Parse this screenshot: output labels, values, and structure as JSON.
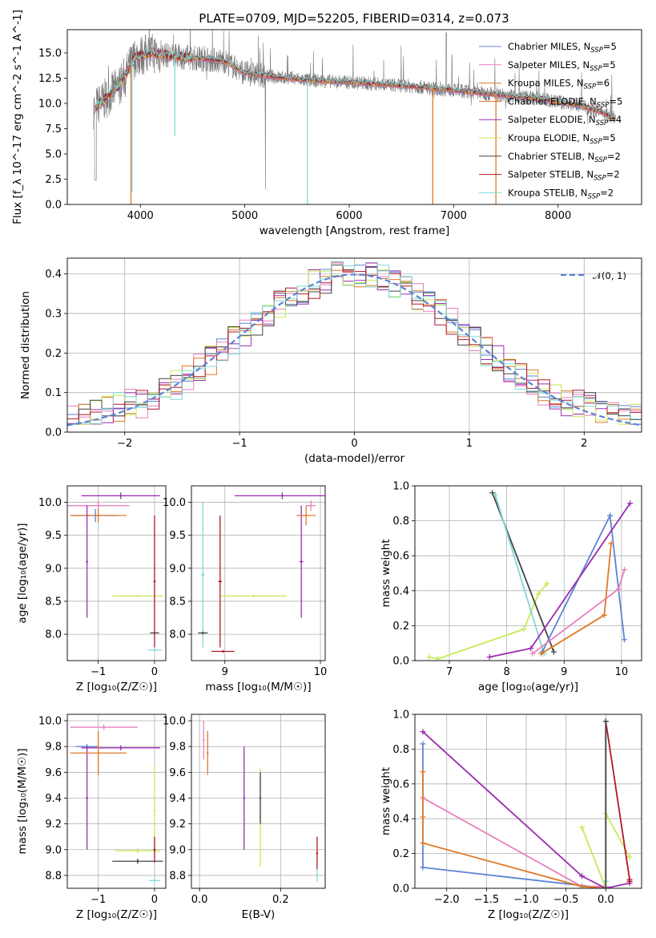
{
  "title": "PLATE=0709, MJD=52205, FIBERID=0314, z=0.073",
  "colors": {
    "chabrier_miles": "#5b84d6",
    "salpeter_miles": "#e87fbf",
    "kroupa_miles": "#e07a28",
    "chabrier_elodie": "#e0702a",
    "salpeter_elodie": "#9a2db0",
    "kroupa_elodie": "#c6ea55",
    "chabrier_stelib": "#444444",
    "salpeter_stelib": "#b2162a",
    "kroupa_stelib": "#7fd9d5",
    "data": "#777777",
    "normal": "#5b84d6",
    "grid": "#b0b0b0"
  },
  "chart_data": [
    {
      "id": "spectrum",
      "type": "line",
      "xlabel": "wavelength [Angstrom, rest frame]",
      "ylabel": "Flux [f_λ 10^-17 erg cm^-2 s^-1 A^-1]",
      "xlim": [
        3300,
        8800
      ],
      "ylim": [
        0,
        17.3
      ],
      "xticks": [
        4000,
        5000,
        6000,
        7000,
        8000
      ],
      "yticks": [
        0.0,
        2.5,
        5.0,
        7.5,
        10.0,
        12.5,
        15.0
      ],
      "grid": false,
      "legend_position": "top-right",
      "legend": [
        {
          "label": "Chabrier MILES, N",
          "sub": "SSP",
          "suffix": "=5",
          "color": "#5b84d6"
        },
        {
          "label": "Salpeter MILES, N",
          "sub": "SSP",
          "suffix": "=5",
          "color": "#e87fbf"
        },
        {
          "label": "Kroupa MILES, N",
          "sub": "SSP",
          "suffix": "=6",
          "color": "#e07a28"
        },
        {
          "label": "Chabrier ELODIE, N",
          "sub": "SSP",
          "suffix": "=5",
          "color": "#e0702a"
        },
        {
          "label": "Salpeter ELODIE, N",
          "sub": "SSP",
          "suffix": "=4",
          "color": "#9a2db0"
        },
        {
          "label": "Kroupa ELODIE, N",
          "sub": "SSP",
          "suffix": "=5",
          "color": "#c6ea55"
        },
        {
          "label": "Chabrier STELIB, N",
          "sub": "SSP",
          "suffix": "=2",
          "color": "#444444"
        },
        {
          "label": "Salpeter STELIB, N",
          "sub": "SSP",
          "suffix": "=2",
          "color": "#b2162a"
        },
        {
          "label": "Kroupa STELIB, N",
          "sub": "SSP",
          "suffix": "=2",
          "color": "#7fd9d5"
        }
      ],
      "continuum_x": [
        3550,
        3650,
        3800,
        3950,
        4100,
        4300,
        4500,
        4800,
        5000,
        5300,
        5600,
        6000,
        6300,
        6600,
        7000,
        7400,
        7800,
        8200,
        8400,
        8550
      ],
      "continuum_y": [
        9.5,
        10.3,
        11.8,
        14.6,
        15.0,
        14.7,
        14.5,
        14.2,
        13.0,
        12.6,
        12.3,
        12.1,
        11.9,
        11.7,
        11.3,
        10.9,
        10.5,
        9.8,
        9.2,
        8.5
      ],
      "dips": [
        {
          "series": "kroupa_miles",
          "x": 3910,
          "y": 0.0
        },
        {
          "series": "kroupa_stelib",
          "x": 3920,
          "y": 1.2
        },
        {
          "series": "kroupa_stelib",
          "x": 4330,
          "y": 6.8
        },
        {
          "series": "kroupa_stelib",
          "x": 5600,
          "y": 0.0
        },
        {
          "series": "kroupa_miles",
          "x": 6800,
          "y": 0.0
        },
        {
          "series": "kroupa_miles",
          "x": 7405,
          "y": 0.0
        }
      ]
    },
    {
      "id": "residuals",
      "type": "histogram",
      "xlabel": "(data-model)/error",
      "ylabel": "Normed distribution",
      "xlim": [
        -2.5,
        2.5
      ],
      "ylim": [
        0,
        0.44
      ],
      "xticks": [
        -2,
        -1,
        0,
        1,
        2
      ],
      "yticks": [
        0.0,
        0.1,
        0.2,
        0.3,
        0.4
      ],
      "grid": true,
      "legend_position": "top-right",
      "legend": [
        {
          "label": "𝒩(0, 1)",
          "color": "#5b84d6",
          "style": "dashed"
        }
      ],
      "bin_width": 0.1
    },
    {
      "id": "age_vs_Z",
      "type": "scatter",
      "xlabel": "Z [log₁₀(Z/Z☉)]",
      "ylabel": "age  [log₁₀(age/yr)]",
      "xlim": [
        -1.55,
        0.2
      ],
      "ylim": [
        7.6,
        10.25
      ],
      "xticks": [
        -1,
        0
      ],
      "yticks": [
        8.0,
        8.5,
        9.0,
        9.5,
        10.0
      ],
      "grid": true,
      "points": [
        {
          "series": "chabrier_miles",
          "x": -1.05,
          "y": 9.8,
          "xerr": 0.4,
          "yerr": 0.1
        },
        {
          "series": "salpeter_miles",
          "x": -1.0,
          "y": 9.95,
          "xerr": 0.55,
          "yerr": 0.08
        },
        {
          "series": "kroupa_miles",
          "x": -1.0,
          "y": 9.8,
          "xerr": 0.5,
          "yerr": 0.1
        },
        {
          "series": "salpeter_elodie",
          "x": -0.6,
          "y": 10.1,
          "xerr": 0.7,
          "yerr": 0.05
        },
        {
          "series": "salpeter_elodie",
          "x": -1.2,
          "y": 9.1,
          "xerr": 0.02,
          "yerr": 0.85
        },
        {
          "series": "kroupa_elodie",
          "x": -0.3,
          "y": 8.58,
          "xerr": 0.45,
          "yerr": 0.02
        },
        {
          "series": "chabrier_stelib",
          "x": 0.0,
          "y": 8.02,
          "xerr": 0.08,
          "yerr": 0.02
        },
        {
          "series": "salpeter_stelib",
          "x": 0.0,
          "y": 8.8,
          "xerr": 0.02,
          "yerr": 1.0
        },
        {
          "series": "kroupa_stelib",
          "x": 0.0,
          "y": 7.76,
          "xerr": 0.12,
          "yerr": 0.02
        }
      ]
    },
    {
      "id": "age_vs_mass",
      "type": "scatter",
      "xlabel": "mass [log₁₀(M/M☉)]",
      "ylabel": "",
      "xlim": [
        8.65,
        10.05
      ],
      "ylim": [
        7.6,
        10.25
      ],
      "xticks": [
        9,
        10
      ],
      "yticks": [
        8.0,
        8.5,
        9.0,
        9.5,
        10.0
      ],
      "grid": true,
      "points": [
        {
          "series": "salpeter_elodie",
          "x": 9.6,
          "y": 10.1,
          "xerr": 0.5,
          "yerr": 0.05
        },
        {
          "series": "salpeter_elodie",
          "x": 9.8,
          "y": 9.1,
          "xerr": 0.02,
          "yerr": 0.85
        },
        {
          "series": "kroupa_elodie",
          "x": 9.3,
          "y": 8.58,
          "xerr": 0.35,
          "yerr": 0.02
        },
        {
          "series": "kroupa_miles",
          "x": 9.85,
          "y": 9.8,
          "xerr": 0.1,
          "yerr": 0.15
        },
        {
          "series": "salpeter_miles",
          "x": 9.9,
          "y": 9.95,
          "xerr": 0.05,
          "yerr": 0.08
        },
        {
          "series": "salpeter_stelib",
          "x": 8.95,
          "y": 8.8,
          "xerr": 0.02,
          "yerr": 1.0
        },
        {
          "series": "salpeter_stelib",
          "x": 8.98,
          "y": 7.74,
          "xerr": 0.12,
          "yerr": 0.02
        },
        {
          "series": "kroupa_stelib",
          "x": 8.77,
          "y": 8.9,
          "xerr": 0.02,
          "yerr": 1.1
        },
        {
          "series": "chabrier_stelib",
          "x": 8.77,
          "y": 8.02,
          "xerr": 0.05,
          "yerr": 0.02
        }
      ]
    },
    {
      "id": "weight_vs_age",
      "type": "line",
      "xlabel": "age  [log₁₀(age/yr)]",
      "ylabel": "mass weight",
      "xlim": [
        6.4,
        10.35
      ],
      "ylim": [
        0,
        1
      ],
      "xticks": [
        7,
        8,
        9,
        10
      ],
      "yticks": [
        0.0,
        0.2,
        0.4,
        0.6,
        0.8,
        1.0
      ],
      "grid": true,
      "series": [
        {
          "key": "kroupa_elodie",
          "x": [
            6.65,
            6.8,
            8.3,
            8.55,
            8.7
          ],
          "y": [
            0.02,
            0.01,
            0.18,
            0.38,
            0.44
          ]
        },
        {
          "key": "chabrier_stelib",
          "x": [
            7.75,
            8.82
          ],
          "y": [
            0.96,
            0.05
          ]
        },
        {
          "key": "kroupa_stelib",
          "x": [
            7.8,
            8.65
          ],
          "y": [
            0.95,
            0.04
          ]
        },
        {
          "key": "chabrier_miles",
          "x": [
            8.62,
            9.8,
            10.05
          ],
          "y": [
            0.05,
            0.83,
            0.12
          ]
        },
        {
          "key": "salpeter_miles",
          "x": [
            8.45,
            9.95,
            10.05
          ],
          "y": [
            0.04,
            0.41,
            0.52
          ]
        },
        {
          "key": "kroupa_miles",
          "x": [
            8.6,
            9.7,
            9.82
          ],
          "y": [
            0.04,
            0.26,
            0.67
          ]
        },
        {
          "key": "salpeter_elodie",
          "x": [
            7.7,
            8.42,
            10.15
          ],
          "y": [
            0.02,
            0.07,
            0.9
          ]
        }
      ]
    },
    {
      "id": "mass_vs_Z",
      "type": "scatter",
      "xlabel": "Z [log₁₀(Z/Z☉)]",
      "ylabel": "mass [log₁₀(M/M☉)]",
      "xlim": [
        -1.55,
        0.2
      ],
      "ylim": [
        8.7,
        10.05
      ],
      "xticks": [
        -1,
        0
      ],
      "yticks": [
        8.8,
        9.0,
        9.2,
        9.4,
        9.6,
        9.8,
        10.0
      ],
      "grid": true,
      "points": [
        {
          "series": "salpeter_miles",
          "x": -0.9,
          "y": 9.95,
          "xerr": 0.6,
          "yerr": 0.02
        },
        {
          "series": "chabrier_miles",
          "x": -1.2,
          "y": 9.8,
          "xerr": 0.2,
          "yerr": 0.02
        },
        {
          "series": "salpeter_elodie",
          "x": -0.6,
          "y": 9.79,
          "xerr": 0.7,
          "yerr": 0.02
        },
        {
          "series": "salpeter_elodie",
          "x": -1.2,
          "y": 9.4,
          "xerr": 0.02,
          "yerr": 0.4
        },
        {
          "series": "kroupa_miles",
          "x": -1.0,
          "y": 9.75,
          "xerr": 0.5,
          "yerr": 0.17
        },
        {
          "series": "kroupa_elodie",
          "x": -0.3,
          "y": 8.99,
          "xerr": 0.4,
          "yerr": 0.02
        },
        {
          "series": "kroupa_elodie",
          "x": 0.0,
          "y": 9.3,
          "xerr": 0.02,
          "yerr": 0.35
        },
        {
          "series": "chabrier_stelib",
          "x": -0.3,
          "y": 8.91,
          "xerr": 0.45,
          "yerr": 0.02
        },
        {
          "series": "salpeter_stelib",
          "x": 0.0,
          "y": 9.0,
          "xerr": 0.02,
          "yerr": 0.1
        },
        {
          "series": "kroupa_stelib",
          "x": 0.0,
          "y": 8.76,
          "xerr": 0.1,
          "yerr": 0.02
        }
      ]
    },
    {
      "id": "mass_vs_EBV",
      "type": "scatter",
      "xlabel": "E(B-V)",
      "ylabel": "",
      "xlim": [
        -0.02,
        0.31
      ],
      "ylim": [
        8.7,
        10.05
      ],
      "xticks": [
        0.0,
        0.2
      ],
      "yticks": [
        8.8,
        9.0,
        9.2,
        9.4,
        9.6,
        9.8,
        10.0
      ],
      "grid": true,
      "points": [
        {
          "series": "salpeter_miles",
          "x": 0.01,
          "y": 9.85,
          "xerr": 0.0,
          "yerr": 0.15
        },
        {
          "series": "kroupa_miles",
          "x": 0.02,
          "y": 9.75,
          "xerr": 0.0,
          "yerr": 0.17
        },
        {
          "series": "salpeter_elodie",
          "x": 0.11,
          "y": 9.4,
          "xerr": 0.0,
          "yerr": 0.4
        },
        {
          "series": "kroupa_elodie",
          "x": 0.15,
          "y": 9.25,
          "xerr": 0.0,
          "yerr": 0.38
        },
        {
          "series": "chabrier_stelib",
          "x": 0.15,
          "y": 9.4,
          "xerr": 0.0,
          "yerr": 0.2
        },
        {
          "series": "salpeter_stelib",
          "x": 0.29,
          "y": 8.97,
          "xerr": 0.0,
          "yerr": 0.13
        },
        {
          "series": "kroupa_stelib",
          "x": 0.29,
          "y": 8.8,
          "xerr": 0.0,
          "yerr": 0.05
        }
      ]
    },
    {
      "id": "weight_vs_Z",
      "type": "line",
      "xlabel": "Z [log₁₀(Z/Z☉)]",
      "ylabel": "mass weight",
      "xlim": [
        -2.4,
        0.45
      ],
      "ylim": [
        0,
        1
      ],
      "xticks": [
        -2.0,
        -1.5,
        -1.0,
        -0.5,
        0.0
      ],
      "yticks": [
        0.0,
        0.2,
        0.4,
        0.6,
        0.8,
        1.0
      ],
      "grid": true,
      "series": [
        {
          "key": "chabrier_miles",
          "x": [
            -2.3,
            -2.3,
            0.0
          ],
          "y": [
            0.83,
            0.12,
            0.0
          ]
        },
        {
          "key": "salpeter_miles",
          "x": [
            -2.3,
            -0.3,
            0.0
          ],
          "y": [
            0.52,
            0.01,
            0.01
          ]
        },
        {
          "key": "kroupa_miles",
          "x": [
            -2.3,
            -2.3,
            -2.3,
            -0.3,
            0.0
          ],
          "y": [
            0.67,
            0.41,
            0.26,
            0.01,
            0.0
          ]
        },
        {
          "key": "salpeter_elodie",
          "x": [
            -2.3,
            -0.3,
            0.0,
            0.3
          ],
          "y": [
            0.9,
            0.07,
            0.0,
            0.03
          ]
        },
        {
          "key": "kroupa_elodie",
          "x": [
            -0.3,
            0.0,
            0.0,
            0.3
          ],
          "y": [
            0.35,
            0.0,
            0.43,
            0.18
          ]
        },
        {
          "key": "salpeter_stelib",
          "x": [
            0.0,
            0.3,
            0.3
          ],
          "y": [
            0.96,
            0.05,
            0.04
          ]
        },
        {
          "key": "kroupa_stelib",
          "x": [
            0.0,
            0.0
          ],
          "y": [
            0.96,
            0.04
          ]
        },
        {
          "key": "chabrier_stelib",
          "x": [
            0.0,
            0.0
          ],
          "y": [
            0.96,
            0.0
          ]
        }
      ]
    }
  ]
}
